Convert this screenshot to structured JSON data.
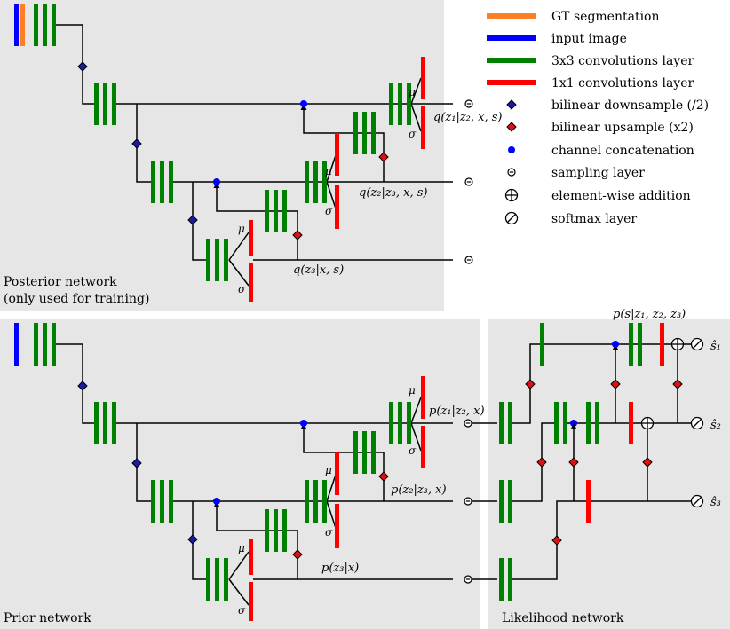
{
  "colors": {
    "gt": "#ff7f24",
    "input": "#0000ff",
    "conv3": "#008000",
    "conv1": "#ff0000",
    "down": "#1a1aa8",
    "up": "#e01010",
    "concat": "#0000ff",
    "panel": "#e6e6e6"
  },
  "legend": [
    {
      "icon": "gt-segmentation-bar-icon",
      "label": "GT segmentation"
    },
    {
      "icon": "input-image-bar-icon",
      "label": "input image"
    },
    {
      "icon": "conv3x3-bar-icon",
      "label": "3x3 convolutions layer"
    },
    {
      "icon": "conv1x1-bar-icon",
      "label": "1x1 convolutions layer"
    },
    {
      "icon": "downsample-diamond-icon",
      "label": "bilinear downsample (/2)"
    },
    {
      "icon": "upsample-diamond-icon",
      "label": "bilinear upsample (x2)"
    },
    {
      "icon": "concat-dot-icon",
      "label": "channel concatenation"
    },
    {
      "icon": "sampling-symbol-icon",
      "label": "sampling layer"
    },
    {
      "icon": "addition-symbol-icon",
      "label": "element-wise addition"
    },
    {
      "icon": "softmax-symbol-icon",
      "label": "softmax layer"
    }
  ],
  "posterior": {
    "title_line1": "Posterior network",
    "title_line2": "(only used for training)",
    "q1": "q(z₁|z₂, x, s)",
    "q2": "q(z₂|z₃, x, s)",
    "q3": "q(z₃|x, s)"
  },
  "prior": {
    "title": "Prior network",
    "p1": "p(z₁|z₂, x)",
    "p2": "p(z₂|z₃, x)",
    "p3": "p(z₃|x)"
  },
  "likelihood": {
    "title": "Likelihood network",
    "ps": "p(s|z₁, z₂, z₃)",
    "s1": "ŝ₁",
    "s2": "ŝ₂",
    "s3": "ŝ₃"
  },
  "greek": {
    "mu": "μ",
    "sigma": "σ"
  }
}
